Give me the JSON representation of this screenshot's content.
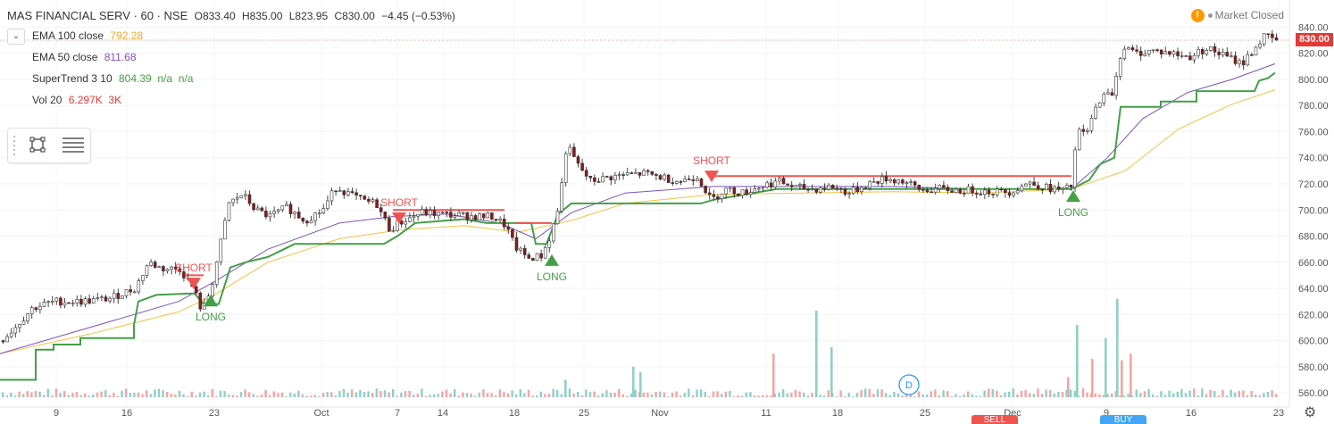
{
  "header": {
    "symbol": "MAS FINANCIAL SERV · 60 · NSE",
    "open": "O833.40",
    "high": "H835.00",
    "low": "L823.95",
    "close": "C830.00",
    "change": "−4.45 (−0.53%)"
  },
  "indicators": [
    {
      "name": "EMA 100 close",
      "value": "792.28",
      "color": "#f5a623"
    },
    {
      "name": "EMA 50 close",
      "value": "811.68",
      "color": "#7b52c1"
    },
    {
      "name": "SuperTrend 3 10",
      "value": "804.39  n/a  n/a",
      "color": "#43a047"
    },
    {
      "name": "Vol 20",
      "value": "6.297K  3K",
      "color": "#e53935"
    }
  ],
  "market_status": "Market Closed",
  "current_price": "830.00",
  "colors": {
    "up": "#26a69a",
    "down": "#ef5350",
    "candle_up": "#ffffff",
    "candle_down": "#8b1a1a",
    "supertrend": "#43a047",
    "supertrend_short": "#ef5350",
    "ema100": "#f5c242",
    "ema50": "#7b52c1"
  },
  "bottom_tabs": [
    "SELL",
    "BUY"
  ],
  "icons": [
    "chevron-down-icon",
    "rectangle-tool-icon",
    "list-tool-icon",
    "warning-icon",
    "settings-icon",
    "dividend-marker-icon"
  ],
  "chart_data": {
    "type": "candlestick",
    "x_tick_labels": [
      "9",
      "16",
      "23",
      "Oct",
      "7",
      "14",
      "18",
      "25",
      "Nov",
      "11",
      "18",
      "25",
      "Dec",
      "9",
      "16",
      "23"
    ],
    "y_tick_labels": [
      "840.00",
      "820.00",
      "800.00",
      "780.00",
      "760.00",
      "740.00",
      "720.00",
      "700.00",
      "680.00",
      "660.00",
      "640.00",
      "620.00",
      "600.00",
      "580.00",
      "560.00"
    ],
    "ylim": [
      555,
      845
    ],
    "signals": [
      {
        "label": "SHORT",
        "price": 642
      },
      {
        "label": "LONG",
        "price": 631
      },
      {
        "label": "SHORT",
        "price": 692
      },
      {
        "label": "LONG",
        "price": 662
      },
      {
        "label": "SHORT",
        "price": 724
      },
      {
        "label": "LONG",
        "price": 711
      }
    ],
    "dividend_marker": "D",
    "price_anchors": [
      [
        0,
        600
      ],
      [
        15,
        610
      ],
      [
        35,
        625
      ],
      [
        60,
        630
      ],
      [
        90,
        630
      ],
      [
        120,
        632
      ],
      [
        150,
        640
      ],
      [
        165,
        660
      ],
      [
        180,
        655
      ],
      [
        200,
        655
      ],
      [
        215,
        640
      ],
      [
        225,
        622
      ],
      [
        235,
        640
      ],
      [
        255,
        705
      ],
      [
        270,
        712
      ],
      [
        285,
        700
      ],
      [
        300,
        695
      ],
      [
        320,
        702
      ],
      [
        340,
        692
      ],
      [
        360,
        700
      ],
      [
        375,
        718
      ],
      [
        390,
        712
      ],
      [
        405,
        707
      ],
      [
        420,
        705
      ],
      [
        435,
        685
      ],
      [
        445,
        690
      ],
      [
        455,
        693
      ],
      [
        470,
        698
      ],
      [
        490,
        697
      ],
      [
        510,
        696
      ],
      [
        530,
        695
      ],
      [
        550,
        695
      ],
      [
        565,
        688
      ],
      [
        575,
        672
      ],
      [
        590,
        663
      ],
      [
        605,
        665
      ],
      [
        615,
        680
      ],
      [
        625,
        705
      ],
      [
        633,
        750
      ],
      [
        645,
        735
      ],
      [
        660,
        722
      ],
      [
        680,
        725
      ],
      [
        700,
        727
      ],
      [
        720,
        728
      ],
      [
        740,
        725
      ],
      [
        760,
        722
      ],
      [
        780,
        726
      ],
      [
        795,
        707
      ],
      [
        810,
        716
      ],
      [
        830,
        713
      ],
      [
        850,
        718
      ],
      [
        870,
        722
      ],
      [
        890,
        717
      ],
      [
        910,
        716
      ],
      [
        930,
        718
      ],
      [
        950,
        713
      ],
      [
        970,
        720
      ],
      [
        990,
        724
      ],
      [
        1010,
        722
      ],
      [
        1030,
        715
      ],
      [
        1050,
        716
      ],
      [
        1070,
        715
      ],
      [
        1090,
        715
      ],
      [
        1110,
        714
      ],
      [
        1130,
        714
      ],
      [
        1150,
        721
      ],
      [
        1170,
        717
      ],
      [
        1190,
        715
      ],
      [
        1198,
        718
      ],
      [
        1205,
        760
      ],
      [
        1215,
        758
      ],
      [
        1230,
        785
      ],
      [
        1245,
        790
      ],
      [
        1255,
        825
      ],
      [
        1270,
        820
      ],
      [
        1290,
        822
      ],
      [
        1310,
        820
      ],
      [
        1330,
        817
      ],
      [
        1350,
        824
      ],
      [
        1370,
        818
      ],
      [
        1390,
        812
      ],
      [
        1405,
        825
      ],
      [
        1415,
        833
      ],
      [
        1428,
        830
      ]
    ],
    "supertrend_anchors": [
      [
        0,
        570
      ],
      [
        40,
        570
      ],
      [
        40,
        593
      ],
      [
        60,
        593
      ],
      [
        60,
        597
      ],
      [
        90,
        597
      ],
      [
        90,
        602
      ],
      [
        150,
        602
      ],
      [
        150,
        612
      ],
      [
        155,
        630
      ],
      [
        175,
        635
      ],
      [
        210,
        636
      ],
      [
        218,
        636
      ],
      [
        228,
        628
      ],
      [
        245,
        628
      ],
      [
        258,
        656
      ],
      [
        275,
        660
      ],
      [
        300,
        664
      ],
      [
        330,
        674
      ],
      [
        430,
        674
      ],
      [
        445,
        680
      ],
      [
        465,
        690
      ],
      [
        520,
        693
      ],
      [
        545,
        690
      ],
      [
        570,
        690
      ],
      [
        595,
        690
      ],
      [
        600,
        674
      ],
      [
        612,
        674
      ],
      [
        625,
        697
      ],
      [
        640,
        705
      ],
      [
        785,
        705
      ],
      [
        800,
        708
      ],
      [
        870,
        716
      ],
      [
        1200,
        716
      ],
      [
        1220,
        723
      ],
      [
        1232,
        735
      ],
      [
        1248,
        740
      ],
      [
        1255,
        779
      ],
      [
        1300,
        779
      ],
      [
        1300,
        783
      ],
      [
        1340,
        783
      ],
      [
        1340,
        791
      ],
      [
        1405,
        791
      ],
      [
        1410,
        799
      ],
      [
        1420,
        801
      ],
      [
        1428,
        805
      ]
    ],
    "supertrend_short_anchors": [
      [
        208,
        650
      ],
      [
        228,
        650
      ],
      [
        440,
        700
      ],
      [
        565,
        700
      ],
      [
        578,
        690
      ],
      [
        618,
        690
      ],
      [
        800,
        726
      ],
      [
        1200,
        726
      ]
    ],
    "ema50_anchors": [
      [
        0,
        590
      ],
      [
        100,
        610
      ],
      [
        200,
        630
      ],
      [
        240,
        645
      ],
      [
        300,
        670
      ],
      [
        380,
        690
      ],
      [
        440,
        695
      ],
      [
        500,
        697
      ],
      [
        560,
        690
      ],
      [
        600,
        678
      ],
      [
        640,
        698
      ],
      [
        700,
        713
      ],
      [
        800,
        718
      ],
      [
        900,
        718
      ],
      [
        1000,
        718
      ],
      [
        1100,
        716
      ],
      [
        1200,
        716
      ],
      [
        1240,
        740
      ],
      [
        1280,
        770
      ],
      [
        1330,
        790
      ],
      [
        1380,
        800
      ],
      [
        1428,
        812
      ]
    ],
    "ema100_anchors": [
      [
        0,
        590
      ],
      [
        100,
        605
      ],
      [
        200,
        622
      ],
      [
        240,
        635
      ],
      [
        300,
        660
      ],
      [
        380,
        678
      ],
      [
        450,
        685
      ],
      [
        520,
        688
      ],
      [
        580,
        683
      ],
      [
        640,
        692
      ],
      [
        700,
        705
      ],
      [
        800,
        712
      ],
      [
        900,
        713
      ],
      [
        1000,
        714
      ],
      [
        1100,
        713
      ],
      [
        1200,
        716
      ],
      [
        1260,
        730
      ],
      [
        1320,
        762
      ],
      [
        1380,
        781
      ],
      [
        1428,
        792
      ]
    ],
    "volume_spikes": [
      [
        913,
        623,
        "up"
      ],
      [
        930,
        595,
        "up"
      ],
      [
        865,
        590,
        "down"
      ],
      [
        1205,
        612,
        "up"
      ],
      [
        1250,
        632,
        "up"
      ],
      [
        1237,
        602,
        "up"
      ],
      [
        1265,
        590,
        "down"
      ],
      [
        1222,
        586,
        "down"
      ],
      [
        708,
        580,
        "up"
      ],
      [
        716,
        576,
        "up"
      ],
      [
        632,
        570,
        "up"
      ],
      [
        1255,
        585,
        "down"
      ],
      [
        1195,
        572,
        "down"
      ]
    ]
  }
}
